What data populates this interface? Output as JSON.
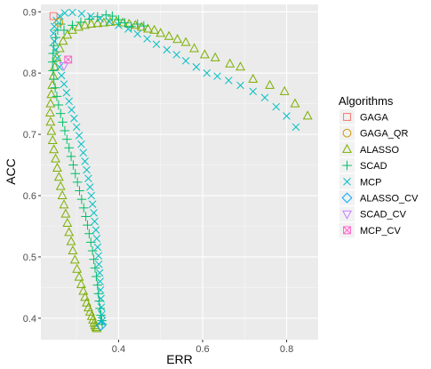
{
  "chart_data": {
    "type": "scatter",
    "xlabel": "ERR",
    "ylabel": "ACC",
    "xlim": [
      0.215,
      0.875
    ],
    "ylim": [
      0.365,
      0.912
    ],
    "x_ticks": [
      0.4,
      0.6,
      0.8
    ],
    "x_tick_labels": [
      "0.4",
      "0.6",
      "0.8"
    ],
    "y_ticks": [
      0.4,
      0.5,
      0.6,
      0.7,
      0.8,
      0.9
    ],
    "y_tick_labels": [
      "0.4",
      "0.5",
      "0.6",
      "0.7",
      "0.8",
      "0.9"
    ],
    "grid": true,
    "legend": {
      "title": "Algorithms",
      "placement": "right",
      "entries": [
        "GAGA",
        "GAGA_QR",
        "ALASSO",
        "SCAD",
        "MCP",
        "ALASSO_CV",
        "SCAD_CV",
        "MCP_CV"
      ]
    },
    "series": [
      {
        "name": "GAGA",
        "color": "#F8766D",
        "shape": "square",
        "points": [
          [
            0.245,
            0.893
          ]
        ]
      },
      {
        "name": "GAGA_QR",
        "color": "#CD9600",
        "shape": "circle",
        "points": [
          [
            0.258,
            0.883
          ]
        ]
      },
      {
        "name": "ALASSO",
        "color": "#7CAE00",
        "shape": "triangle",
        "points": [
          [
            0.85,
            0.73
          ],
          [
            0.82,
            0.75
          ],
          [
            0.795,
            0.77
          ],
          [
            0.76,
            0.78
          ],
          [
            0.72,
            0.79
          ],
          [
            0.69,
            0.81
          ],
          [
            0.665,
            0.815
          ],
          [
            0.63,
            0.825
          ],
          [
            0.605,
            0.83
          ],
          [
            0.58,
            0.84
          ],
          [
            0.56,
            0.85
          ],
          [
            0.54,
            0.855
          ],
          [
            0.52,
            0.86
          ],
          [
            0.5,
            0.865
          ],
          [
            0.485,
            0.87
          ],
          [
            0.47,
            0.872
          ],
          [
            0.455,
            0.875
          ],
          [
            0.44,
            0.878
          ],
          [
            0.425,
            0.88
          ],
          [
            0.41,
            0.882
          ],
          [
            0.395,
            0.884
          ],
          [
            0.38,
            0.883
          ],
          [
            0.365,
            0.882
          ],
          [
            0.35,
            0.881
          ],
          [
            0.335,
            0.88
          ],
          [
            0.32,
            0.878
          ],
          [
            0.305,
            0.875
          ],
          [
            0.29,
            0.87
          ],
          [
            0.278,
            0.862
          ],
          [
            0.268,
            0.852
          ],
          [
            0.26,
            0.84
          ],
          [
            0.253,
            0.825
          ],
          [
            0.248,
            0.81
          ],
          [
            0.245,
            0.795
          ],
          [
            0.242,
            0.78
          ],
          [
            0.24,
            0.765
          ],
          [
            0.238,
            0.75
          ],
          [
            0.237,
            0.735
          ],
          [
            0.238,
            0.72
          ],
          [
            0.24,
            0.705
          ],
          [
            0.243,
            0.69
          ],
          [
            0.246,
            0.675
          ],
          [
            0.25,
            0.66
          ],
          [
            0.254,
            0.645
          ],
          [
            0.258,
            0.63
          ],
          [
            0.262,
            0.615
          ],
          [
            0.266,
            0.6
          ],
          [
            0.27,
            0.585
          ],
          [
            0.274,
            0.57
          ],
          [
            0.278,
            0.555
          ],
          [
            0.282,
            0.54
          ],
          [
            0.287,
            0.525
          ],
          [
            0.291,
            0.51
          ],
          [
            0.296,
            0.495
          ],
          [
            0.301,
            0.48
          ],
          [
            0.306,
            0.467
          ],
          [
            0.311,
            0.455
          ],
          [
            0.316,
            0.444
          ],
          [
            0.32,
            0.434
          ],
          [
            0.324,
            0.425
          ],
          [
            0.328,
            0.417
          ],
          [
            0.332,
            0.41
          ],
          [
            0.336,
            0.403
          ],
          [
            0.339,
            0.397
          ],
          [
            0.342,
            0.392
          ],
          [
            0.344,
            0.388
          ],
          [
            0.346,
            0.385
          ],
          [
            0.348,
            0.383
          ]
        ]
      },
      {
        "name": "SCAD",
        "color": "#00BE67",
        "shape": "plus",
        "points": [
          [
            0.27,
            0.87
          ],
          [
            0.29,
            0.878
          ],
          [
            0.31,
            0.883
          ],
          [
            0.33,
            0.888
          ],
          [
            0.35,
            0.892
          ],
          [
            0.37,
            0.895
          ],
          [
            0.385,
            0.893
          ],
          [
            0.4,
            0.887
          ],
          [
            0.415,
            0.882
          ],
          [
            0.43,
            0.876
          ],
          [
            0.445,
            0.88
          ],
          [
            0.46,
            0.877
          ],
          [
            0.262,
            0.88
          ],
          [
            0.255,
            0.87
          ],
          [
            0.25,
            0.858
          ],
          [
            0.246,
            0.845
          ],
          [
            0.244,
            0.832
          ],
          [
            0.243,
            0.818
          ],
          [
            0.244,
            0.804
          ],
          [
            0.246,
            0.79
          ],
          [
            0.249,
            0.776
          ],
          [
            0.253,
            0.762
          ],
          [
            0.257,
            0.748
          ],
          [
            0.262,
            0.734
          ],
          [
            0.267,
            0.72
          ],
          [
            0.272,
            0.706
          ],
          [
            0.277,
            0.692
          ],
          [
            0.282,
            0.678
          ],
          [
            0.287,
            0.664
          ],
          [
            0.292,
            0.65
          ],
          [
            0.297,
            0.636
          ],
          [
            0.302,
            0.622
          ],
          [
            0.307,
            0.608
          ],
          [
            0.312,
            0.594
          ],
          [
            0.317,
            0.58
          ],
          [
            0.322,
            0.566
          ],
          [
            0.326,
            0.552
          ],
          [
            0.33,
            0.538
          ],
          [
            0.334,
            0.524
          ],
          [
            0.338,
            0.51
          ],
          [
            0.341,
            0.496
          ],
          [
            0.344,
            0.482
          ],
          [
            0.347,
            0.468
          ],
          [
            0.35,
            0.454
          ],
          [
            0.352,
            0.44
          ],
          [
            0.354,
            0.428
          ],
          [
            0.356,
            0.416
          ],
          [
            0.358,
            0.405
          ],
          [
            0.36,
            0.396
          ],
          [
            0.361,
            0.39
          ]
        ]
      },
      {
        "name": "MCP",
        "color": "#00BFC4",
        "shape": "cross",
        "points": [
          [
            0.822,
            0.712
          ],
          [
            0.8,
            0.73
          ],
          [
            0.775,
            0.745
          ],
          [
            0.748,
            0.76
          ],
          [
            0.72,
            0.77
          ],
          [
            0.69,
            0.78
          ],
          [
            0.662,
            0.788
          ],
          [
            0.635,
            0.795
          ],
          [
            0.61,
            0.8
          ],
          [
            0.585,
            0.81
          ],
          [
            0.56,
            0.82
          ],
          [
            0.538,
            0.83
          ],
          [
            0.515,
            0.838
          ],
          [
            0.49,
            0.847
          ],
          [
            0.468,
            0.856
          ],
          [
            0.445,
            0.864
          ],
          [
            0.423,
            0.872
          ],
          [
            0.4,
            0.878
          ],
          [
            0.378,
            0.884
          ],
          [
            0.356,
            0.889
          ],
          [
            0.334,
            0.893
          ],
          [
            0.312,
            0.897
          ],
          [
            0.29,
            0.899
          ],
          [
            0.272,
            0.898
          ],
          [
            0.26,
            0.893
          ],
          [
            0.252,
            0.886
          ],
          [
            0.247,
            0.876
          ],
          [
            0.245,
            0.865
          ],
          [
            0.247,
            0.852
          ],
          [
            0.25,
            0.838
          ],
          [
            0.254,
            0.824
          ],
          [
            0.259,
            0.81
          ],
          [
            0.264,
            0.796
          ],
          [
            0.27,
            0.782
          ],
          [
            0.276,
            0.768
          ],
          [
            0.282,
            0.754
          ],
          [
            0.288,
            0.74
          ],
          [
            0.294,
            0.726
          ],
          [
            0.3,
            0.712
          ],
          [
            0.306,
            0.698
          ],
          [
            0.311,
            0.684
          ],
          [
            0.316,
            0.67
          ],
          [
            0.32,
            0.656
          ],
          [
            0.324,
            0.642
          ],
          [
            0.328,
            0.628
          ],
          [
            0.332,
            0.614
          ],
          [
            0.335,
            0.6
          ],
          [
            0.338,
            0.586
          ],
          [
            0.341,
            0.572
          ],
          [
            0.343,
            0.558
          ],
          [
            0.346,
            0.544
          ],
          [
            0.348,
            0.53
          ],
          [
            0.35,
            0.516
          ],
          [
            0.352,
            0.502
          ],
          [
            0.353,
            0.488
          ],
          [
            0.355,
            0.474
          ],
          [
            0.356,
            0.46
          ],
          [
            0.357,
            0.446
          ],
          [
            0.358,
            0.432
          ],
          [
            0.359,
            0.418
          ],
          [
            0.36,
            0.406
          ],
          [
            0.361,
            0.396
          ]
        ]
      },
      {
        "name": "ALASSO_CV",
        "color": "#00A9FF",
        "shape": "diamond",
        "points": [
          [
            0.358,
            0.388
          ]
        ]
      },
      {
        "name": "SCAD_CV",
        "color": "#C77CFF",
        "shape": "triangle-down",
        "points": [
          [
            0.27,
            0.812
          ]
        ]
      },
      {
        "name": "MCP_CV",
        "color": "#FF61CC",
        "shape": "square-cross",
        "points": [
          [
            0.28,
            0.822
          ]
        ]
      }
    ]
  }
}
